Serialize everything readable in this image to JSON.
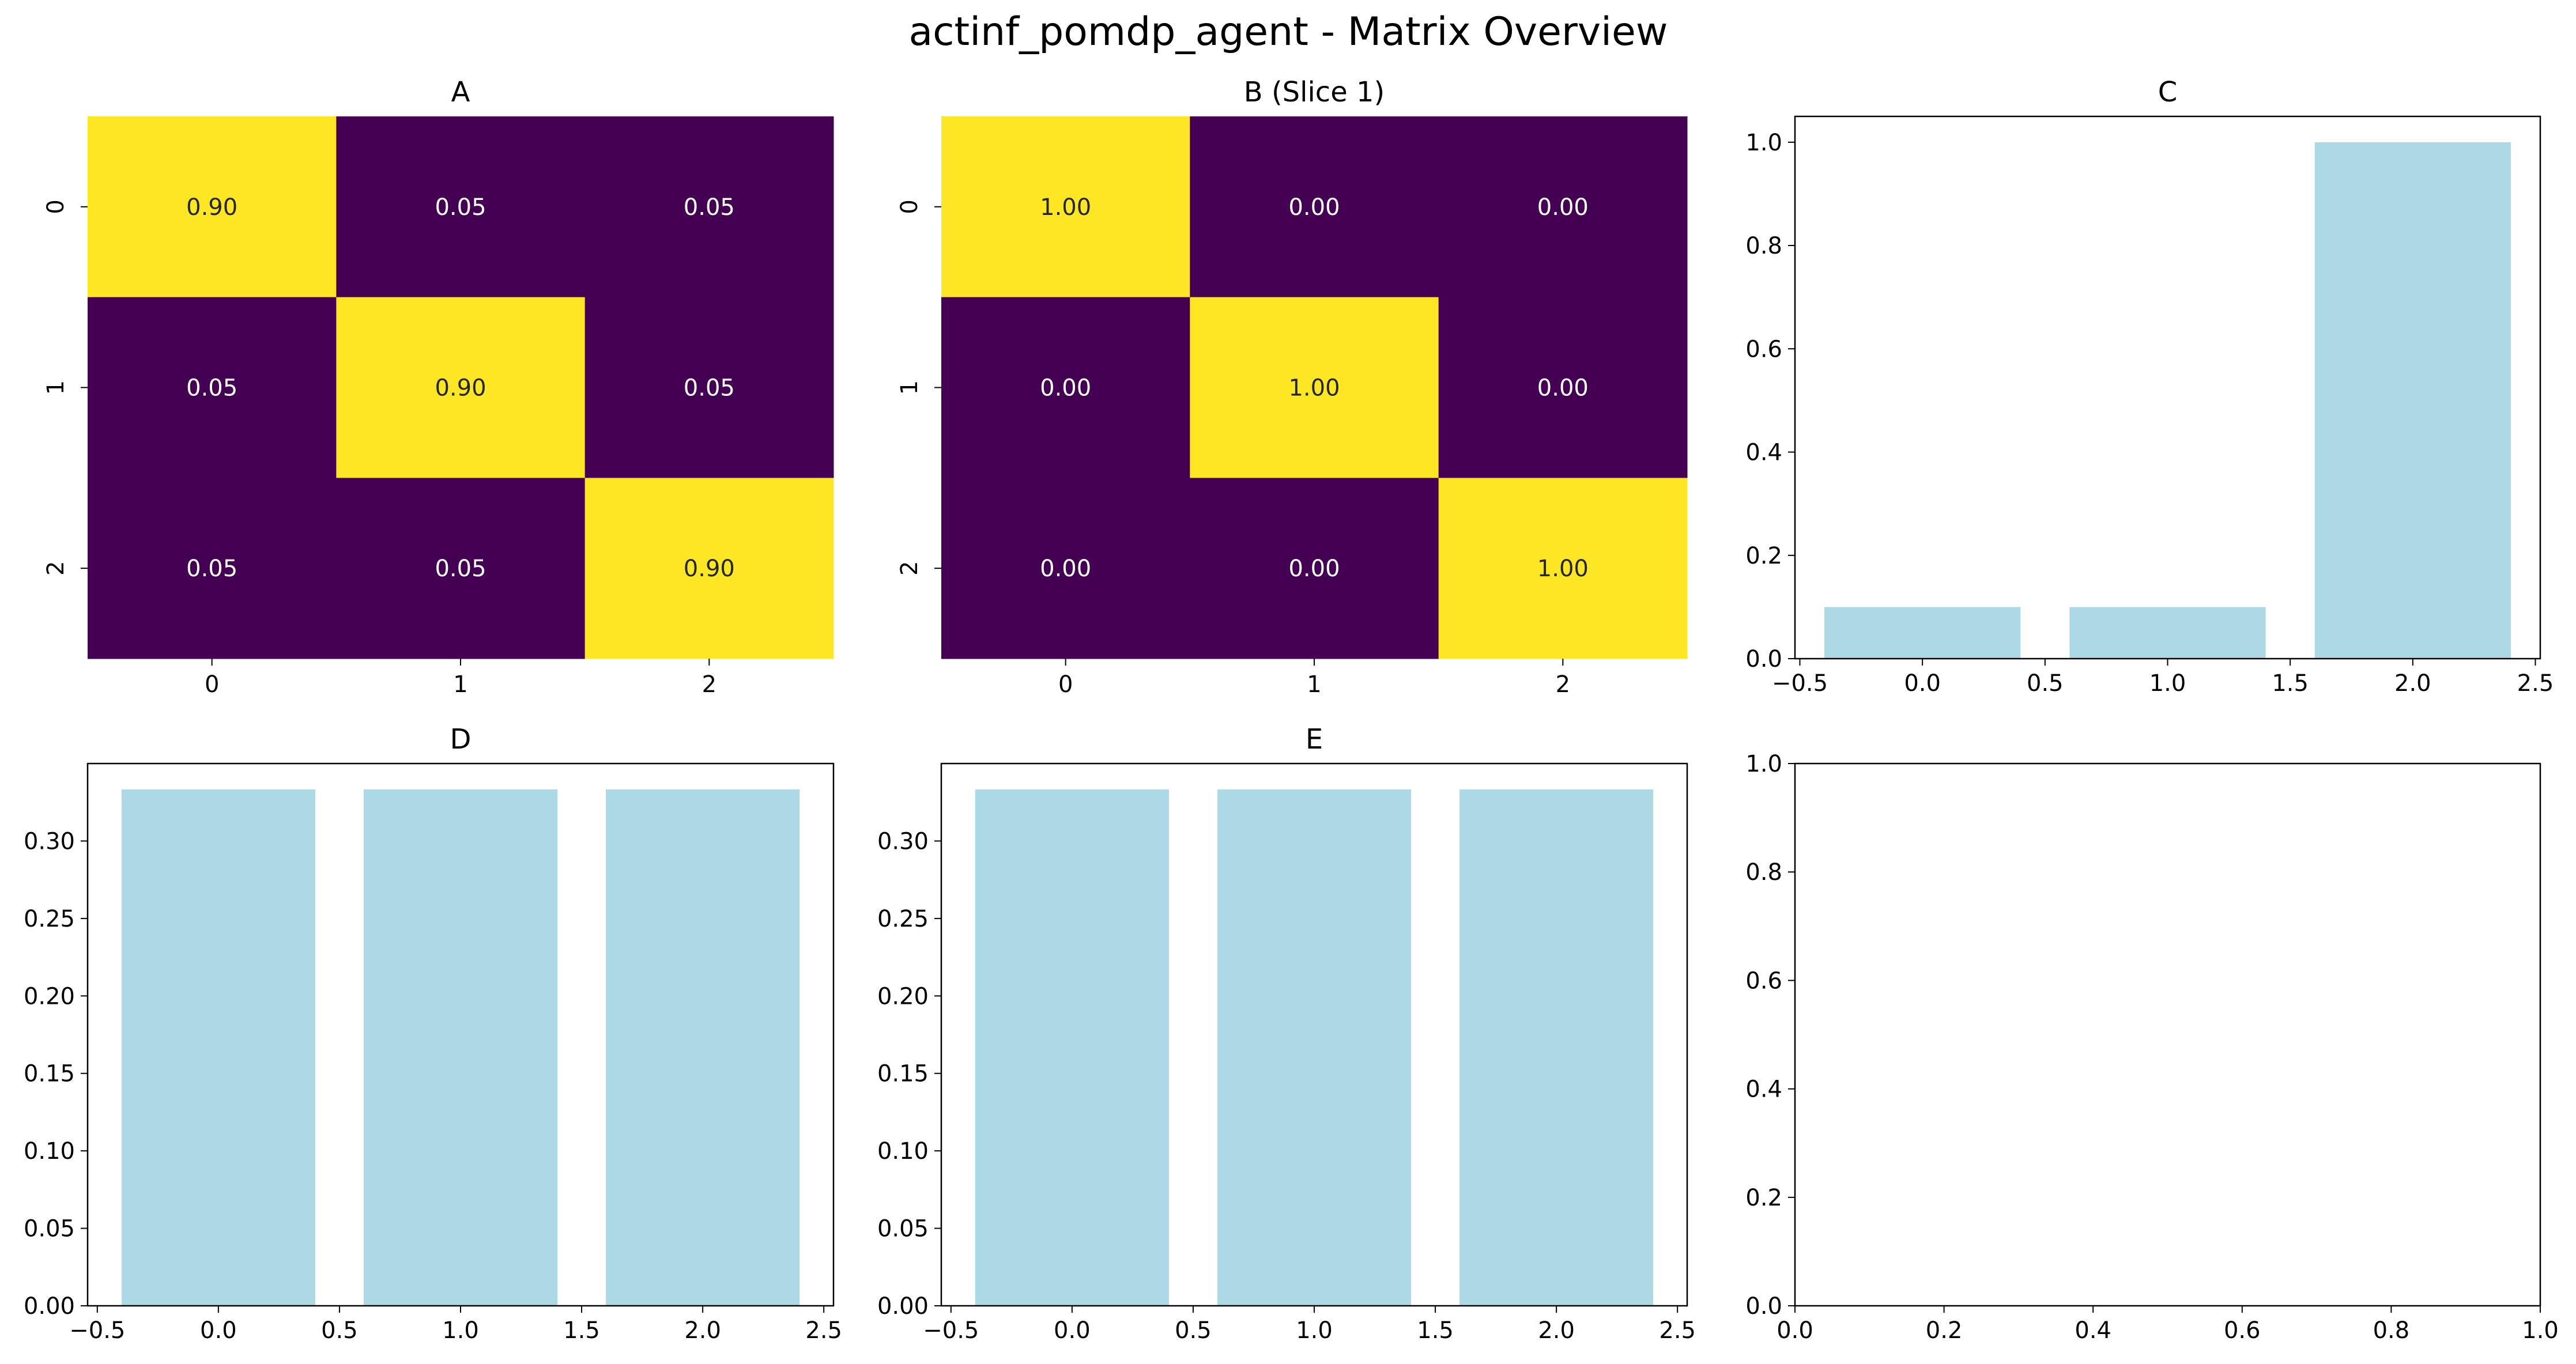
{
  "figure": {
    "title": "actinf_pomdp_agent - Matrix Overview"
  },
  "colors": {
    "heat_low": "#440154",
    "heat_high": "#fde725",
    "bar_fill": "#add8e6",
    "text_on_dark": "#ffffff",
    "text_on_light": "#262626",
    "axis": "#000000"
  },
  "chart_data": [
    {
      "id": "A",
      "type": "heatmap",
      "title": "A",
      "xlabel": "",
      "ylabel": "",
      "x_tick_labels": [
        "0",
        "1",
        "2"
      ],
      "y_tick_labels": [
        "0",
        "1",
        "2"
      ],
      "values": [
        [
          0.9,
          0.05,
          0.05
        ],
        [
          0.05,
          0.9,
          0.05
        ],
        [
          0.05,
          0.05,
          0.9
        ]
      ],
      "value_labels": [
        [
          "0.90",
          "0.05",
          "0.05"
        ],
        [
          "0.05",
          "0.90",
          "0.05"
        ],
        [
          "0.05",
          "0.05",
          "0.90"
        ]
      ],
      "colormap": "viridis",
      "vrange": [
        0.05,
        0.9
      ],
      "grid": false,
      "colorbar": false
    },
    {
      "id": "B",
      "type": "heatmap",
      "title": "B (Slice 1)",
      "xlabel": "",
      "ylabel": "",
      "x_tick_labels": [
        "0",
        "1",
        "2"
      ],
      "y_tick_labels": [
        "0",
        "1",
        "2"
      ],
      "values": [
        [
          1.0,
          0.0,
          0.0
        ],
        [
          0.0,
          1.0,
          0.0
        ],
        [
          0.0,
          0.0,
          1.0
        ]
      ],
      "value_labels": [
        [
          "1.00",
          "0.00",
          "0.00"
        ],
        [
          "0.00",
          "1.00",
          "0.00"
        ],
        [
          "0.00",
          "0.00",
          "1.00"
        ]
      ],
      "colormap": "viridis",
      "vrange": [
        0.0,
        1.0
      ],
      "grid": false,
      "colorbar": false
    },
    {
      "id": "C",
      "type": "bar",
      "title": "C",
      "xlabel": "",
      "ylabel": "",
      "x": [
        0,
        1,
        2
      ],
      "values": [
        0.1,
        0.1,
        1.0
      ],
      "bar_width": 0.8,
      "xlim": [
        -0.52,
        2.52
      ],
      "ylim": [
        0,
        1.05
      ],
      "x_ticks": [
        -0.5,
        0.0,
        0.5,
        1.0,
        1.5,
        2.0,
        2.5
      ],
      "x_tick_labels": [
        "−0.5",
        "0.0",
        "0.5",
        "1.0",
        "1.5",
        "2.0",
        "2.5"
      ],
      "y_ticks": [
        0.0,
        0.2,
        0.4,
        0.6,
        0.8,
        1.0
      ],
      "y_tick_labels": [
        "0.0",
        "0.2",
        "0.4",
        "0.6",
        "0.8",
        "1.0"
      ],
      "grid": false
    },
    {
      "id": "D",
      "type": "bar",
      "title": "D",
      "xlabel": "",
      "ylabel": "",
      "x": [
        0,
        1,
        2
      ],
      "values": [
        0.3333,
        0.3333,
        0.3333
      ],
      "bar_width": 0.8,
      "xlim": [
        -0.54,
        2.54
      ],
      "ylim": [
        0,
        0.35
      ],
      "x_ticks": [
        -0.5,
        0.0,
        0.5,
        1.0,
        1.5,
        2.0,
        2.5
      ],
      "x_tick_labels": [
        "−0.5",
        "0.0",
        "0.5",
        "1.0",
        "1.5",
        "2.0",
        "2.5"
      ],
      "y_ticks": [
        0.0,
        0.05,
        0.1,
        0.15,
        0.2,
        0.25,
        0.3
      ],
      "y_tick_labels": [
        "0.00",
        "0.05",
        "0.10",
        "0.15",
        "0.20",
        "0.25",
        "0.30"
      ],
      "grid": false
    },
    {
      "id": "E",
      "type": "bar",
      "title": "E",
      "xlabel": "",
      "ylabel": "",
      "x": [
        0,
        1,
        2
      ],
      "values": [
        0.3333,
        0.3333,
        0.3333
      ],
      "bar_width": 0.8,
      "xlim": [
        -0.54,
        2.54
      ],
      "ylim": [
        0,
        0.35
      ],
      "x_ticks": [
        -0.5,
        0.0,
        0.5,
        1.0,
        1.5,
        2.0,
        2.5
      ],
      "x_tick_labels": [
        "−0.5",
        "0.0",
        "0.5",
        "1.0",
        "1.5",
        "2.0",
        "2.5"
      ],
      "y_ticks": [
        0.0,
        0.05,
        0.1,
        0.15,
        0.2,
        0.25,
        0.3
      ],
      "y_tick_labels": [
        "0.00",
        "0.05",
        "0.10",
        "0.15",
        "0.20",
        "0.25",
        "0.30"
      ],
      "grid": false
    },
    {
      "id": "empty",
      "type": "line",
      "title": "",
      "xlabel": "",
      "ylabel": "",
      "x": [],
      "values": [],
      "xlim": [
        0,
        1
      ],
      "ylim": [
        0,
        1
      ],
      "x_ticks": [
        0.0,
        0.2,
        0.4,
        0.6,
        0.8,
        1.0
      ],
      "x_tick_labels": [
        "0.0",
        "0.2",
        "0.4",
        "0.6",
        "0.8",
        "1.0"
      ],
      "y_ticks": [
        0.0,
        0.2,
        0.4,
        0.6,
        0.8,
        1.0
      ],
      "y_tick_labels": [
        "0.0",
        "0.2",
        "0.4",
        "0.6",
        "0.8",
        "1.0"
      ],
      "grid": false
    }
  ]
}
